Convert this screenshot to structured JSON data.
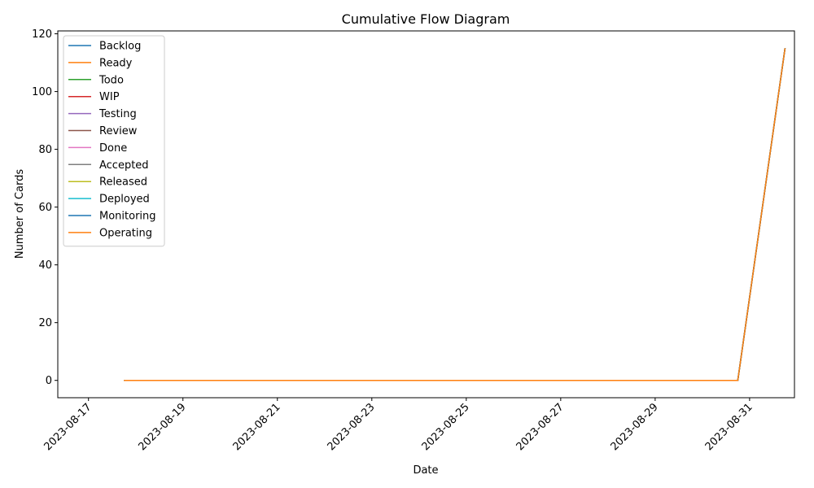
{
  "chart_data": {
    "type": "line",
    "title": "Cumulative Flow Diagram",
    "xlabel": "Date",
    "ylabel": "Number of Cards",
    "x": [
      "2023-08-17",
      "2023-08-18",
      "2023-08-19",
      "2023-08-20",
      "2023-08-21",
      "2023-08-22",
      "2023-08-23",
      "2023-08-24",
      "2023-08-25",
      "2023-08-26",
      "2023-08-27",
      "2023-08-28",
      "2023-08-29",
      "2023-08-30",
      "2023-08-31"
    ],
    "xticks": [
      "2023-08-17",
      "2023-08-19",
      "2023-08-21",
      "2023-08-23",
      "2023-08-25",
      "2023-08-27",
      "2023-08-29",
      "2023-08-31"
    ],
    "xlim": [
      "2023-08-16",
      "2023-08-31"
    ],
    "ylim": [
      -6,
      121
    ],
    "yticks": [
      0,
      20,
      40,
      60,
      80,
      100,
      120
    ],
    "grid": false,
    "legend_position": "top-left",
    "series": [
      {
        "name": "Backlog",
        "color": "#1f77b4",
        "values": [
          0,
          0,
          0,
          0,
          0,
          0,
          0,
          0,
          0,
          0,
          0,
          0,
          0,
          0,
          115
        ]
      },
      {
        "name": "Ready",
        "color": "#ff7f0e",
        "values": [
          0,
          0,
          0,
          0,
          0,
          0,
          0,
          0,
          0,
          0,
          0,
          0,
          0,
          0,
          115
        ]
      },
      {
        "name": "Todo",
        "color": "#2ca02c",
        "values": [
          0,
          0,
          0,
          0,
          0,
          0,
          0,
          0,
          0,
          0,
          0,
          0,
          0,
          0,
          115
        ]
      },
      {
        "name": "WIP",
        "color": "#d62728",
        "values": [
          0,
          0,
          0,
          0,
          0,
          0,
          0,
          0,
          0,
          0,
          0,
          0,
          0,
          0,
          115
        ]
      },
      {
        "name": "Testing",
        "color": "#9467bd",
        "values": [
          0,
          0,
          0,
          0,
          0,
          0,
          0,
          0,
          0,
          0,
          0,
          0,
          0,
          0,
          115
        ]
      },
      {
        "name": "Review",
        "color": "#8c564b",
        "values": [
          0,
          0,
          0,
          0,
          0,
          0,
          0,
          0,
          0,
          0,
          0,
          0,
          0,
          0,
          115
        ]
      },
      {
        "name": "Done",
        "color": "#e377c2",
        "values": [
          0,
          0,
          0,
          0,
          0,
          0,
          0,
          0,
          0,
          0,
          0,
          0,
          0,
          0,
          115
        ]
      },
      {
        "name": "Accepted",
        "color": "#7f7f7f",
        "values": [
          0,
          0,
          0,
          0,
          0,
          0,
          0,
          0,
          0,
          0,
          0,
          0,
          0,
          0,
          115
        ]
      },
      {
        "name": "Released",
        "color": "#bcbd22",
        "values": [
          0,
          0,
          0,
          0,
          0,
          0,
          0,
          0,
          0,
          0,
          0,
          0,
          0,
          0,
          115
        ]
      },
      {
        "name": "Deployed",
        "color": "#17becf",
        "values": [
          0,
          0,
          0,
          0,
          0,
          0,
          0,
          0,
          0,
          0,
          0,
          0,
          0,
          0,
          115
        ]
      },
      {
        "name": "Monitoring",
        "color": "#1f77b4",
        "values": [
          0,
          0,
          0,
          0,
          0,
          0,
          0,
          0,
          0,
          0,
          0,
          0,
          0,
          0,
          115
        ]
      },
      {
        "name": "Operating",
        "color": "#ff7f0e",
        "values": [
          0,
          0,
          0,
          0,
          0,
          0,
          0,
          0,
          0,
          0,
          0,
          0,
          0,
          0,
          115
        ]
      }
    ]
  }
}
